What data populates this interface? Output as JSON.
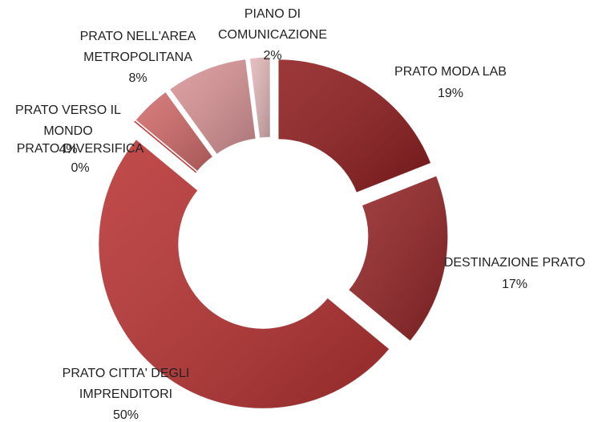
{
  "chart_data": {
    "type": "doughnut",
    "categories": [
      "PRATO MODA LAB",
      "DESTINAZIONE PRATO",
      "PRATO CITTA' DEGLI IMPRENDITORI",
      "PRATO DIVERSIFICA",
      "PRATO VERSO IL MONDO",
      "PRATO NELL'AREA METROPOLITANA",
      "PIANO DI COMUNICAZIONE"
    ],
    "values": [
      19,
      17,
      50,
      0,
      4,
      8,
      2
    ],
    "value_labels": [
      "19%",
      "17%",
      "50%",
      "0%",
      "4%",
      "8%",
      "2%"
    ],
    "colors": [
      "#8e1c1e",
      "#932426",
      "#b83232",
      "#c0393a",
      "#d16a6a",
      "#d99496",
      "#e3b7b9"
    ]
  }
}
